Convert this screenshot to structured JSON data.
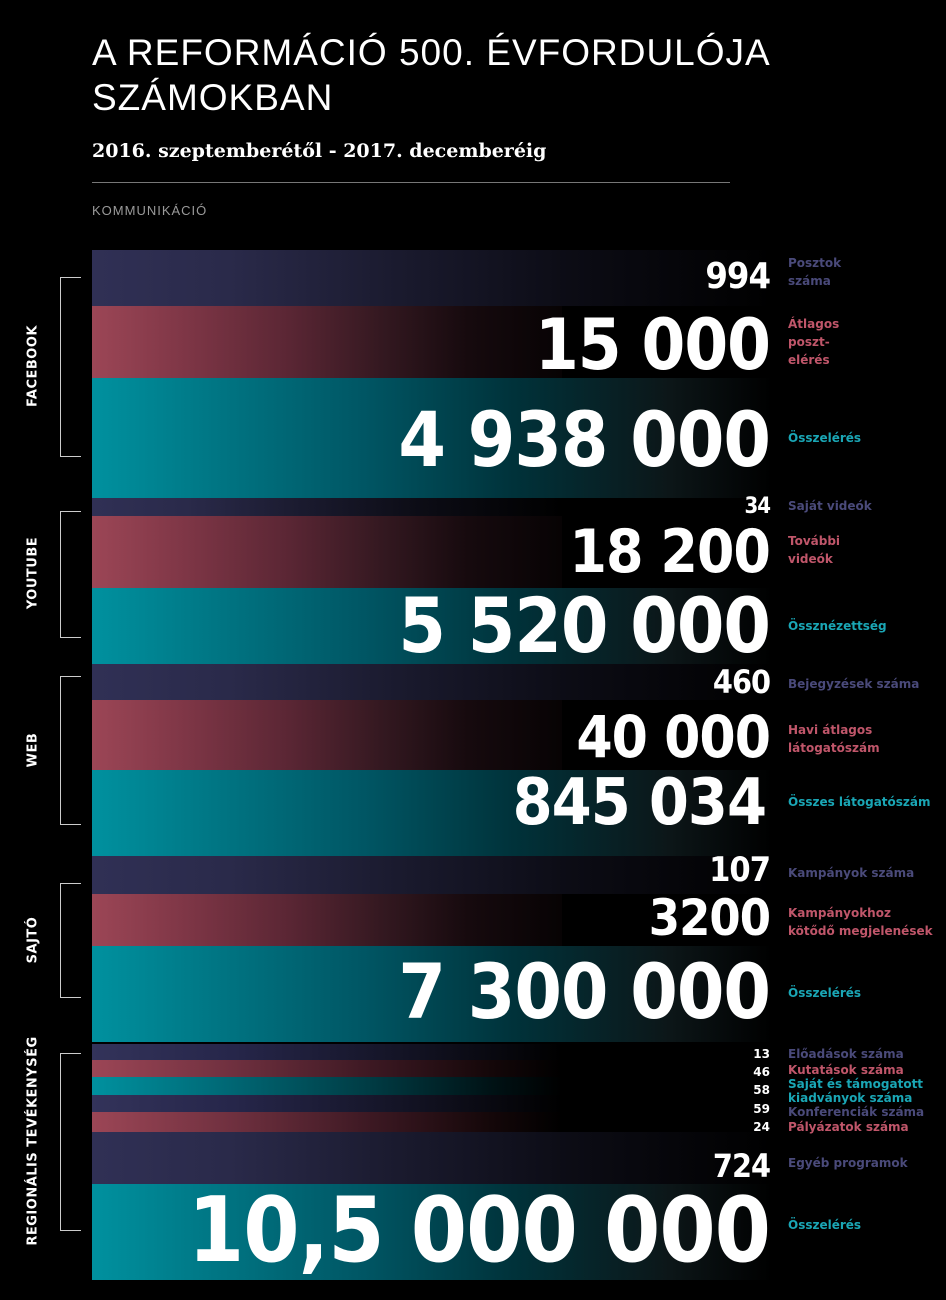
{
  "title": "A REFORMÁCIÓ 500. ÉVFORDULÓJA SZÁMOKBAN",
  "subtitle": "2016. szeptemberétől - 2017. decemberéig",
  "section": "KOMMUNIKÁCIÓ",
  "colors": {
    "blue": "#303055",
    "red": "#9c4656",
    "teal": "#00919f",
    "background": "#000000"
  },
  "groups": {
    "facebook": {
      "label": "FACEBOOK",
      "posts": {
        "value": "994",
        "label_1": "Posztok",
        "label_2": "száma"
      },
      "avg_reach": {
        "value": "15 000",
        "label_1": "Átlagos",
        "label_2": "poszt-",
        "label_3": "elérés"
      },
      "total_reach": {
        "value": "4 938 000",
        "label": "Összelérés"
      }
    },
    "youtube": {
      "label": "YOUTUBE",
      "own_videos": {
        "value": "34",
        "label": "Saját videók"
      },
      "more_videos": {
        "value": "18 200",
        "label_1": "További",
        "label_2": "videók"
      },
      "views": {
        "value": "5 520 000",
        "label": "Össznézettség"
      }
    },
    "web": {
      "label": "WEB",
      "entries": {
        "value": "460",
        "label": "Bejegyzések száma"
      },
      "monthly": {
        "value": "40 000",
        "label_1": "Havi átlagos",
        "label_2": "látogatószám"
      },
      "total": {
        "value": "845 034",
        "label": "Összes látogatószám"
      }
    },
    "press": {
      "label": "SAJTÓ",
      "campaigns": {
        "value": "107",
        "label": "Kampányok száma"
      },
      "appearances": {
        "value": "3200",
        "label_1": "Kampányokhoz",
        "label_2": "kötődő megjelenések"
      },
      "reach": {
        "value": "7 300 000",
        "label": "Összelérés"
      }
    },
    "regional": {
      "label": "REGIONÁLIS TEVÉKENYSÉG",
      "lectures": {
        "value": "13",
        "label": "Előadások száma"
      },
      "research": {
        "value": "46",
        "label": "Kutatások száma"
      },
      "publications": {
        "value": "58",
        "label_1": "Saját és támogatott",
        "label_2": "kiadványok száma"
      },
      "conferences": {
        "value": "59",
        "label": "Konferenciák száma"
      },
      "tenders": {
        "value": "24",
        "label": "Pályázatok száma"
      },
      "other": {
        "value": "724",
        "label": "Egyéb programok"
      },
      "reach": {
        "value": "10,5 000 000",
        "label": "Összelérés"
      }
    }
  }
}
